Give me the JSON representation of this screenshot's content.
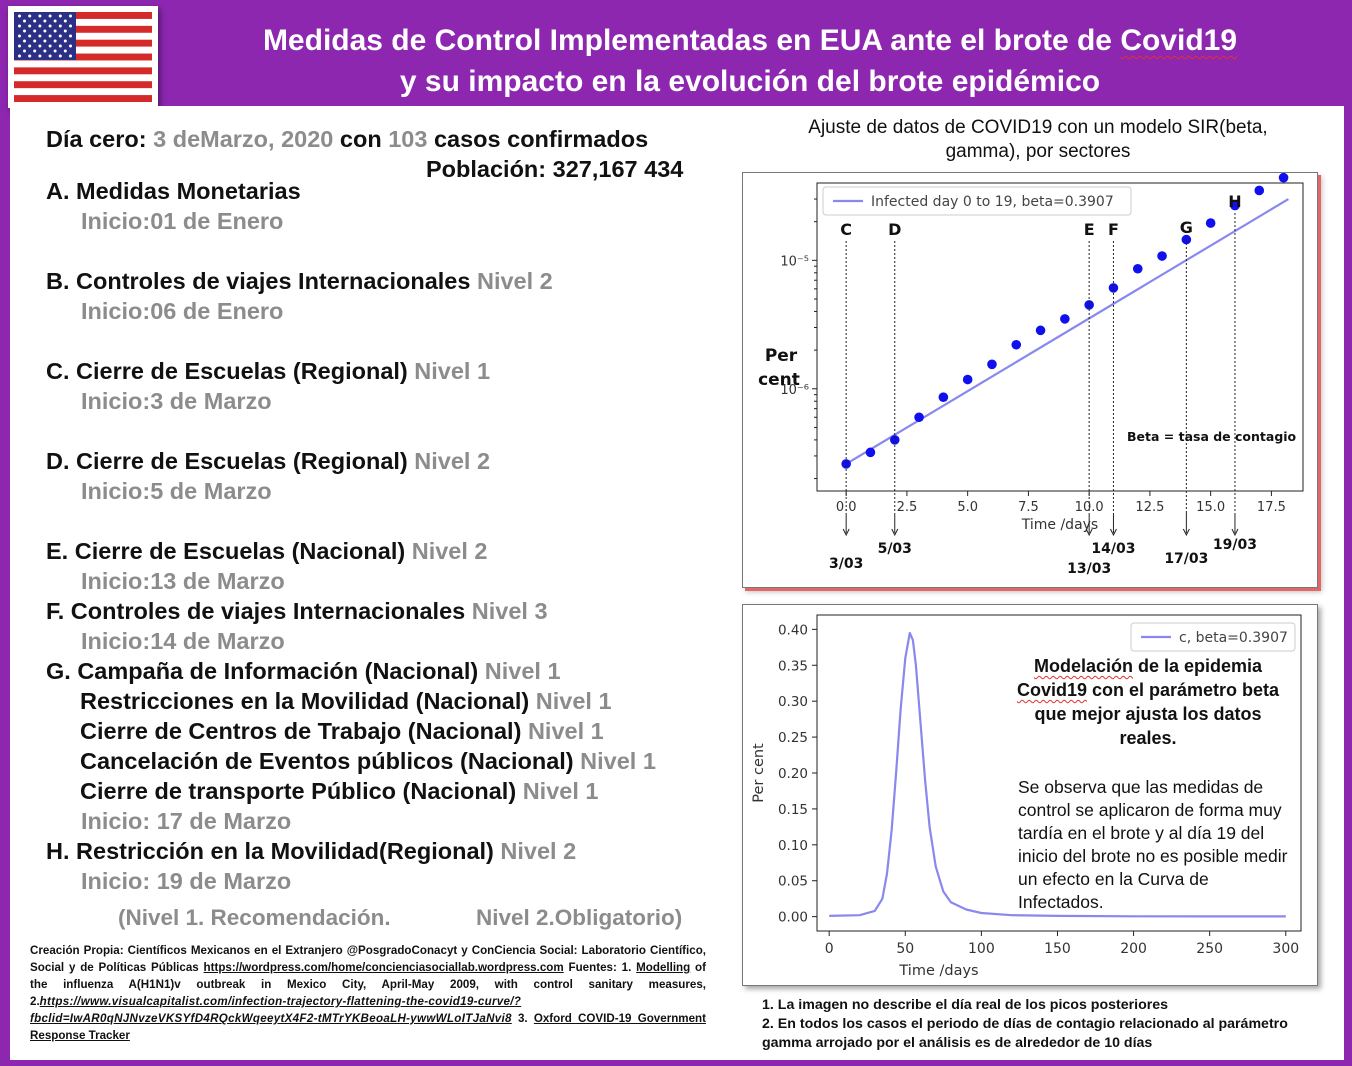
{
  "header": {
    "title_line1_pre": "Medidas de Control Implementadas en EUA ante el brote de ",
    "title_line1_word": "Covid19",
    "title_line2": "y su impacto en la evolución del brote epidémico"
  },
  "intro": {
    "day_zero_label": "Día cero:",
    "day_zero_date": "3 deMarzo, 2020",
    "con": "con",
    "cases": "103",
    "cases_label": "casos confirmados",
    "population": "Población: 327,167 434"
  },
  "measures": [
    {
      "title": "A. Medidas Monetarias",
      "level": "",
      "start": "Inicio:01 de Enero"
    },
    {
      "title": "B. Controles de viajes Internacionales",
      "level": "Nivel 2",
      "start": "Inicio:06 de Enero"
    },
    {
      "title": "C. Cierre de Escuelas (Regional)",
      "level": "Nivel 1",
      "start": "Inicio:3 de Marzo"
    },
    {
      "title": "D. Cierre de Escuelas (Regional)",
      "level": "Nivel 2",
      "start": "Inicio:5 de Marzo"
    },
    {
      "title": "E. Cierre de Escuelas (Nacional)",
      "level": "Nivel 2",
      "start": "Inicio:13 de Marzo"
    },
    {
      "title": "F. Controles de viajes Internacionales",
      "level": "Nivel 3",
      "start": "Inicio:14 de Marzo"
    }
  ],
  "measure_g": {
    "items": [
      {
        "title": "G.  Campaña de Información (Nacional)",
        "level": "Nivel 1"
      },
      {
        "title": "Restricciones en la Movilidad (Nacional)",
        "level": "Nivel 1"
      },
      {
        "title": "Cierre de Centros de Trabajo (Nacional)",
        "level": "Nivel 1"
      },
      {
        "title": "Cancelación de Eventos públicos (Nacional)",
        "level": "Nivel 1"
      },
      {
        "title": "Cierre de transporte Público (Nacional)",
        "level": "Nivel 1"
      }
    ],
    "start": "Inicio: 17 de Marzo"
  },
  "measure_h": {
    "title": "H. Restricción en la Movilidad(Regional)",
    "level": "Nivel 2",
    "start": "Inicio: 19 de Marzo"
  },
  "levels_legend": {
    "level1": "(Nivel 1. Recomendación.",
    "level2": "Nivel 2.Obligatorio)"
  },
  "credits": {
    "text1": "Creación Propia: Científicos Mexicanos en el Extranjero @PosgradoConacyt y ConCiencia Social: Laboratorio Científico, Social y de Políticas Públicas ",
    "link1": "https://wordpress.com/home/concienciasociallab.wordpress.com",
    "text2": " Fuentes:  1. ",
    "link2": "Modelling",
    "text3": " of the influenza A(H1N1)v outbreak in Mexico City, April-May 2009, with control sanitary measures, 2.",
    "link3": "https://www.visualcapitalist.com/infection-trajectory-flattening-the-covid19-curve/?fbclid=IwAR0qNJNvzeVKSYfD4RQckWqeeytX4F2-tMTrYKBeoaLH-ywwWLoITJaNvi8",
    "text4": "  3. ",
    "link4": "Oxford COVID-19 Government Response Tracker"
  },
  "chart1": {
    "title": "Ajuste de datos de COVID19 con un modelo SIR(beta, gamma), por sectores",
    "ylabel_line1": "Per",
    "ylabel_line2": "cent",
    "annotation": "Beta = tasa de contagio",
    "marker_letters": [
      "C",
      "D",
      "E",
      "F",
      "G",
      "H"
    ],
    "date_labels": [
      "3/03",
      "5/03",
      "13/03",
      "14/03",
      "17/03",
      "19/03"
    ]
  },
  "chart2": {
    "model_title_pre": "Modelación",
    "model_title_mid": " de la epidemia ",
    "model_title_word": "Covid19",
    "model_title_post": " con el parámetro beta que mejor ajusta los datos reales.",
    "model_note": "Se observa que las medidas de control se aplicaron de forma muy tardía en el brote y al día 19 del inicio del brote no es posible medir un efecto en la Curva de Infectados."
  },
  "notes": {
    "note1": "1. La imagen no describe el día real de los picos posteriores",
    "note2": "2. En todos los casos el periodo de días de contagio relacionado  al parámetro gamma arrojado por el análisis  es de alrededor de 10 días"
  },
  "chart_data": [
    {
      "type": "scatter",
      "title": "",
      "xlabel": "Time /days",
      "ylabel": "",
      "yscale": "log",
      "xlim": [
        -1.2,
        18.8
      ],
      "ylim": [
        1.6e-07,
        4e-05
      ],
      "xticks": [
        0.0,
        2.5,
        5.0,
        7.5,
        10.0,
        12.5,
        15.0,
        17.5
      ],
      "xtick_labels": [
        "0.0",
        "2.5",
        "5.0",
        "7.5",
        "10.0",
        "12.5",
        "15.0",
        "17.5"
      ],
      "yticks": [
        1e-06,
        1e-05
      ],
      "ytick_labels": [
        "10⁻⁶",
        "10⁻⁵"
      ],
      "legend": "top-left",
      "grid": false,
      "series": [
        {
          "name": "Infected day 0 to 19, beta=0.3907",
          "kind": "line",
          "color": "#8888ee",
          "x": [
            0,
            18.2
          ],
          "y": [
            2.6e-07,
            3e-05
          ]
        },
        {
          "name": "",
          "kind": "scatter",
          "color": "#1010ee",
          "x": [
            0,
            1,
            2,
            3,
            4,
            5,
            6,
            7,
            8,
            9,
            10,
            11,
            12,
            13,
            14,
            15,
            16,
            17,
            18
          ],
          "y": [
            2.6e-07,
            3.2e-07,
            4e-07,
            6e-07,
            8.6e-07,
            1.18e-06,
            1.55e-06,
            2.2e-06,
            2.85e-06,
            3.5e-06,
            4.5e-06,
            6.1e-06,
            8.6e-06,
            1.08e-05,
            1.45e-05,
            1.95e-05,
            2.67e-05,
            3.5e-05,
            4.4e-05
          ]
        }
      ],
      "markers": [
        {
          "label": "C",
          "x": 0.0,
          "date": "3/03"
        },
        {
          "label": "D",
          "x": 2.0,
          "date": "5/03"
        },
        {
          "label": "E",
          "x": 10.0,
          "date": "13/03"
        },
        {
          "label": "F",
          "x": 11.0,
          "date": "14/03"
        },
        {
          "label": "G",
          "x": 14.0,
          "date": "17/03"
        },
        {
          "label": "H",
          "x": 16.0,
          "date": "19/03"
        }
      ]
    },
    {
      "type": "line",
      "title": "",
      "xlabel": "Time /days",
      "ylabel": "Per cent",
      "xlim": [
        -8,
        310
      ],
      "ylim": [
        -0.02,
        0.42
      ],
      "xticks": [
        0,
        50,
        100,
        150,
        200,
        250,
        300
      ],
      "yticks": [
        0.0,
        0.05,
        0.1,
        0.15,
        0.2,
        0.25,
        0.3,
        0.35,
        0.4
      ],
      "ytick_labels": [
        "0.00",
        "0.05",
        "0.10",
        "0.15",
        "0.20",
        "0.25",
        "0.30",
        "0.35",
        "0.40"
      ],
      "legend": "top-right",
      "grid": false,
      "series": [
        {
          "name": "c, beta=0.3907",
          "color": "#8888ee",
          "x": [
            0,
            20,
            30,
            35,
            38,
            41,
            44,
            47,
            50,
            53,
            55,
            57,
            60,
            63,
            66,
            70,
            75,
            80,
            90,
            100,
            120,
            150,
            200,
            250,
            300
          ],
          "y": [
            0.001,
            0.002,
            0.008,
            0.025,
            0.06,
            0.12,
            0.2,
            0.29,
            0.36,
            0.395,
            0.385,
            0.35,
            0.27,
            0.19,
            0.125,
            0.07,
            0.035,
            0.02,
            0.01,
            0.005,
            0.002,
            0.001,
            0.0005,
            0.0003,
            0.0003
          ]
        }
      ]
    }
  ]
}
